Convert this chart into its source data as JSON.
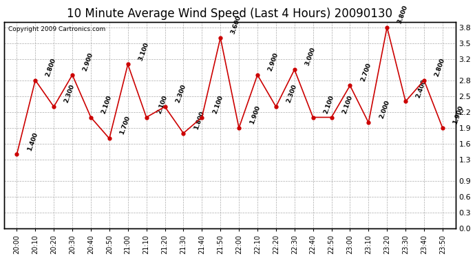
{
  "title": "10 Minute Average Wind Speed (Last 4 Hours) 20090130",
  "copyright": "Copyright 2009 Cartronics.com",
  "x_labels": [
    "20:00",
    "20:10",
    "20:20",
    "20:30",
    "20:40",
    "20:50",
    "21:00",
    "21:10",
    "21:20",
    "21:30",
    "21:40",
    "21:50",
    "22:00",
    "22:10",
    "22:20",
    "22:30",
    "22:40",
    "22:50",
    "23:00",
    "23:10",
    "23:20",
    "23:30",
    "23:40",
    "23:50"
  ],
  "y_values": [
    1.4,
    2.8,
    2.3,
    2.9,
    2.1,
    1.7,
    3.1,
    2.1,
    2.3,
    1.8,
    2.1,
    3.6,
    1.9,
    2.9,
    2.3,
    3.0,
    2.1,
    2.1,
    2.7,
    2.0,
    3.8,
    2.4,
    2.8,
    1.9
  ],
  "point_labels": [
    "1.400",
    "2.800",
    "2.300",
    "2.900",
    "2.100",
    "1.700",
    "3.100",
    "2.100",
    "2.300",
    "1.800",
    "2.100",
    "3.600",
    "1.900",
    "2.900",
    "2.300",
    "3.000",
    "2.100",
    "2.100",
    "2.700",
    "2.000",
    "3.800",
    "2.400",
    "2.800",
    "1.900"
  ],
  "line_color": "#cc0000",
  "marker_color": "#cc0000",
  "background_color": "#ffffff",
  "grid_color": "#aaaaaa",
  "title_fontsize": 12,
  "ylim": [
    0.0,
    3.9
  ],
  "yticks": [
    0.0,
    0.3,
    0.6,
    0.9,
    1.3,
    1.6,
    1.9,
    2.2,
    2.5,
    2.8,
    3.2,
    3.5,
    3.8
  ]
}
